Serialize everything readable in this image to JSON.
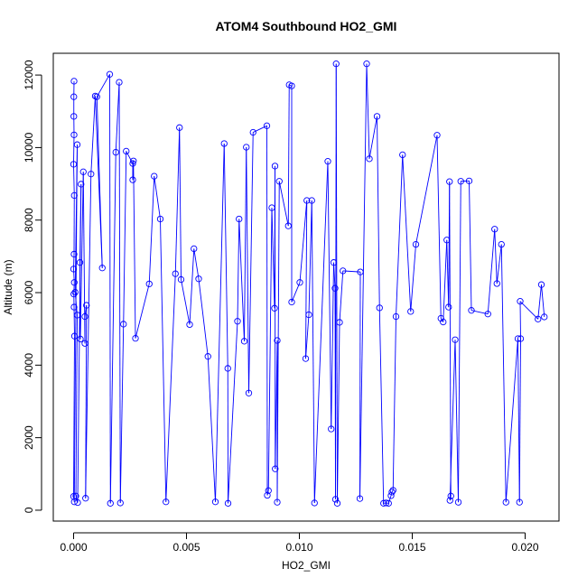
{
  "chart_data": {
    "type": "line",
    "title": "ATOM4 Southbound HO2_GMI",
    "xlabel": "HO2_GMI",
    "ylabel": "Altitude (m)",
    "xlim": [
      -0.0009,
      0.0215
    ],
    "ylim": [
      -300,
      12600
    ],
    "xticks": [
      0.0,
      0.005,
      0.01,
      0.015,
      0.02
    ],
    "xtick_labels": [
      "0.000",
      "0.005",
      "0.010",
      "0.015",
      "0.020"
    ],
    "yticks": [
      0,
      2000,
      4000,
      6000,
      8000,
      10000,
      12000
    ],
    "ytick_labels": [
      "0",
      "2000",
      "4000",
      "6000",
      "8000",
      "10000",
      "12000"
    ],
    "grid": false,
    "markers": "open-circle",
    "color": "#0000ff",
    "series": [
      {
        "points": [
          [
            2e-05,
            11830
          ],
          [
            1e-05,
            11400
          ],
          [
            1e-05,
            10860
          ],
          [
            2e-05,
            10350
          ],
          [
            0.0,
            9540
          ],
          [
            3e-05,
            8680
          ],
          [
            2e-05,
            7060
          ],
          [
            0.0,
            6650
          ],
          [
            3e-05,
            6280
          ],
          [
            1e-05,
            5960
          ],
          [
            2e-05,
            5600
          ],
          [
            4e-05,
            4800
          ],
          [
            0.0,
            380
          ],
          [
            3e-05,
            230
          ],
          [
            0.00016,
            10080
          ],
          [
            7e-05,
            6010
          ],
          [
            0.00016,
            5380
          ],
          [
            0.0001,
            390
          ],
          [
            0.00018,
            210
          ],
          [
            0.00033,
            8990
          ],
          [
            0.00028,
            6830
          ],
          [
            0.0003,
            4720
          ],
          [
            0.00043,
            9330
          ],
          [
            0.0005,
            4600
          ],
          [
            0.0005,
            5340
          ],
          [
            0.00057,
            5650
          ],
          [
            0.00053,
            330
          ],
          [
            0.00077,
            9270
          ],
          [
            0.00096,
            11420
          ],
          [
            0.00127,
            6680
          ],
          [
            0.00103,
            11400
          ],
          [
            0.0016,
            12020
          ],
          [
            0.00163,
            190
          ],
          [
            0.00187,
            9870
          ],
          [
            0.00202,
            11800
          ],
          [
            0.00207,
            200
          ],
          [
            0.00221,
            5130
          ],
          [
            0.00233,
            9900
          ],
          [
            0.00262,
            9560
          ],
          [
            0.00262,
            9110
          ],
          [
            0.00265,
            9630
          ],
          [
            0.00274,
            4740
          ],
          [
            0.00335,
            6240
          ],
          [
            0.00357,
            9210
          ],
          [
            0.00384,
            8030
          ],
          [
            0.00409,
            230
          ],
          [
            0.00451,
            6520
          ],
          [
            0.00469,
            10550
          ],
          [
            0.00476,
            6360
          ],
          [
            0.00514,
            5120
          ],
          [
            0.00533,
            7210
          ],
          [
            0.00554,
            6380
          ],
          [
            0.00595,
            4240
          ],
          [
            0.00628,
            230
          ],
          [
            0.00667,
            10110
          ],
          [
            0.00683,
            3910
          ],
          [
            0.00684,
            190
          ],
          [
            0.00726,
            5210
          ],
          [
            0.00733,
            8030
          ],
          [
            0.00756,
            4660
          ],
          [
            0.00765,
            10010
          ],
          [
            0.00776,
            3230
          ],
          [
            0.00795,
            10420
          ],
          [
            0.00856,
            10600
          ],
          [
            0.00858,
            410
          ],
          [
            0.00863,
            540
          ],
          [
            0.00878,
            8340
          ],
          [
            0.0089,
            5570
          ],
          [
            0.00892,
            9490
          ],
          [
            0.00893,
            1140
          ],
          [
            0.00902,
            4680
          ],
          [
            0.00902,
            220
          ],
          [
            0.00911,
            9070
          ],
          [
            0.00951,
            7840
          ],
          [
            0.00955,
            11730
          ],
          [
            0.00966,
            11700
          ],
          [
            0.00966,
            5740
          ],
          [
            0.01002,
            6280
          ],
          [
            0.01033,
            8540
          ],
          [
            0.01028,
            4180
          ],
          [
            0.01042,
            5390
          ],
          [
            0.01055,
            8540
          ],
          [
            0.01067,
            200
          ],
          [
            0.01126,
            9620
          ],
          [
            0.01141,
            2240
          ],
          [
            0.01152,
            6830
          ],
          [
            0.01158,
            6120
          ],
          [
            0.0116,
            300
          ],
          [
            0.01163,
            12310
          ],
          [
            0.01168,
            190
          ],
          [
            0.01178,
            5180
          ],
          [
            0.01193,
            6600
          ],
          [
            0.0127,
            6570
          ],
          [
            0.01268,
            320
          ],
          [
            0.01298,
            12310
          ],
          [
            0.0131,
            9690
          ],
          [
            0.01344,
            10860
          ],
          [
            0.01355,
            5580
          ],
          [
            0.01373,
            190
          ],
          [
            0.01384,
            200
          ],
          [
            0.01395,
            190
          ],
          [
            0.01406,
            400
          ],
          [
            0.0141,
            500
          ],
          [
            0.01415,
            550
          ],
          [
            0.01428,
            5340
          ],
          [
            0.01457,
            9800
          ],
          [
            0.01493,
            5480
          ],
          [
            0.01516,
            7330
          ],
          [
            0.0161,
            10340
          ],
          [
            0.01627,
            5290
          ],
          [
            0.01637,
            5190
          ],
          [
            0.01653,
            7450
          ],
          [
            0.01661,
            5600
          ],
          [
            0.01665,
            9060
          ],
          [
            0.01671,
            390
          ],
          [
            0.01667,
            270
          ],
          [
            0.0169,
            4700
          ],
          [
            0.01704,
            220
          ],
          [
            0.01715,
            9070
          ],
          [
            0.01752,
            9080
          ],
          [
            0.01762,
            5510
          ],
          [
            0.01835,
            5410
          ],
          [
            0.01865,
            7750
          ],
          [
            0.01875,
            6250
          ],
          [
            0.01895,
            7330
          ],
          [
            0.01915,
            220
          ],
          [
            0.01968,
            4730
          ],
          [
            0.01975,
            220
          ],
          [
            0.0198,
            4730
          ],
          [
            0.01978,
            5760
          ],
          [
            0.02057,
            5270
          ],
          [
            0.02072,
            6220
          ],
          [
            0.02085,
            5330
          ]
        ]
      }
    ]
  }
}
